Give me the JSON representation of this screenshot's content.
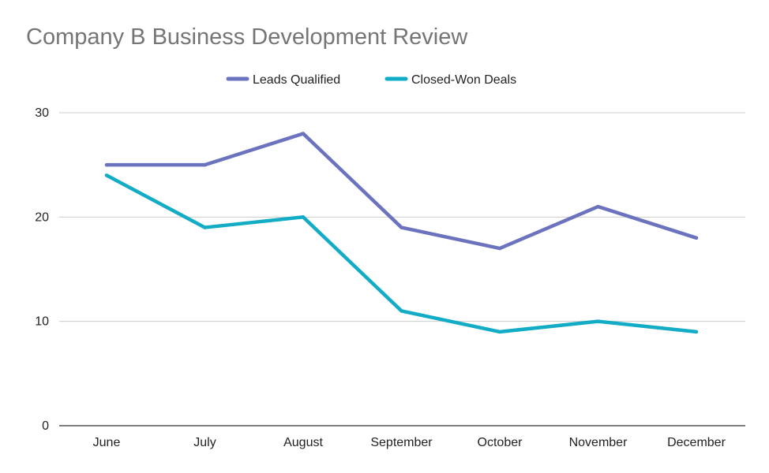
{
  "chart_data": {
    "type": "line",
    "title": "Company B Business Development Review",
    "categories": [
      "June",
      "July",
      "August",
      "September",
      "October",
      "November",
      "December"
    ],
    "series": [
      {
        "name": "Leads Qualified",
        "color": "#6b73bf",
        "values": [
          25,
          25,
          28,
          19,
          17,
          21,
          18
        ]
      },
      {
        "name": "Closed-Won Deals",
        "color": "#12acc6",
        "values": [
          24,
          19,
          20,
          11,
          9,
          10,
          9
        ]
      }
    ],
    "ylim": [
      0,
      30
    ],
    "yticks": [
      0,
      10,
      20,
      30
    ],
    "grid": true,
    "legend_position": "top"
  }
}
